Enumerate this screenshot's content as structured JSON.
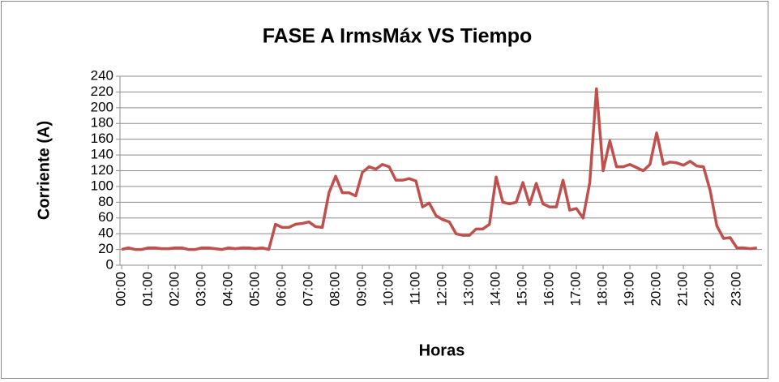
{
  "chart_data": {
    "type": "line",
    "title": "FASE A    IrmsMáx VS Tiempo",
    "x_label": "Horas",
    "y_label": "Corriente (A)",
    "categories": [
      "00:00",
      null,
      null,
      null,
      "01:00",
      null,
      null,
      null,
      "02:00",
      null,
      null,
      null,
      "03:00",
      null,
      null,
      null,
      "04:00",
      null,
      null,
      null,
      "05:00",
      null,
      null,
      null,
      "06:00",
      null,
      null,
      null,
      "07:00",
      null,
      null,
      null,
      "08:00",
      null,
      null,
      null,
      "09:00",
      null,
      null,
      null,
      "10:00",
      null,
      null,
      null,
      "11:00",
      null,
      null,
      null,
      "12:00",
      null,
      null,
      null,
      "13:00",
      null,
      null,
      null,
      "14:00",
      null,
      null,
      null,
      "15:00",
      null,
      null,
      null,
      "16:00",
      null,
      null,
      null,
      "17:00",
      null,
      null,
      null,
      "18:00",
      null,
      null,
      null,
      "19:00",
      null,
      null,
      null,
      "20:00",
      null,
      null,
      null,
      "21:00",
      null,
      null,
      null,
      "22:00",
      null,
      null,
      null,
      "23:00",
      null,
      null,
      null
    ],
    "series": [
      {
        "color": "#c0504d",
        "values": [
          20,
          22,
          20,
          20,
          22,
          22,
          21,
          21,
          22,
          22,
          20,
          20,
          22,
          22,
          21,
          20,
          22,
          21,
          22,
          22,
          21,
          22,
          20,
          52,
          48,
          48,
          52,
          53,
          55,
          49,
          48,
          92,
          113,
          92,
          92,
          88,
          118,
          125,
          122,
          128,
          125,
          108,
          108,
          110,
          107,
          74,
          79,
          63,
          58,
          55,
          40,
          38,
          38,
          46,
          46,
          52,
          112,
          80,
          78,
          80,
          105,
          77,
          104,
          78,
          74,
          74,
          108,
          70,
          72,
          60,
          105,
          224,
          120,
          158,
          125,
          125,
          128,
          124,
          120,
          128,
          168,
          128,
          131,
          130,
          127,
          132,
          126,
          125,
          95,
          50,
          34,
          35,
          22,
          22,
          21,
          22
        ]
      }
    ],
    "ylim": [
      0,
      240
    ],
    "yticks": [
      0,
      20,
      40,
      60,
      80,
      100,
      120,
      140,
      160,
      180,
      200,
      220,
      240
    ],
    "grid": true
  }
}
